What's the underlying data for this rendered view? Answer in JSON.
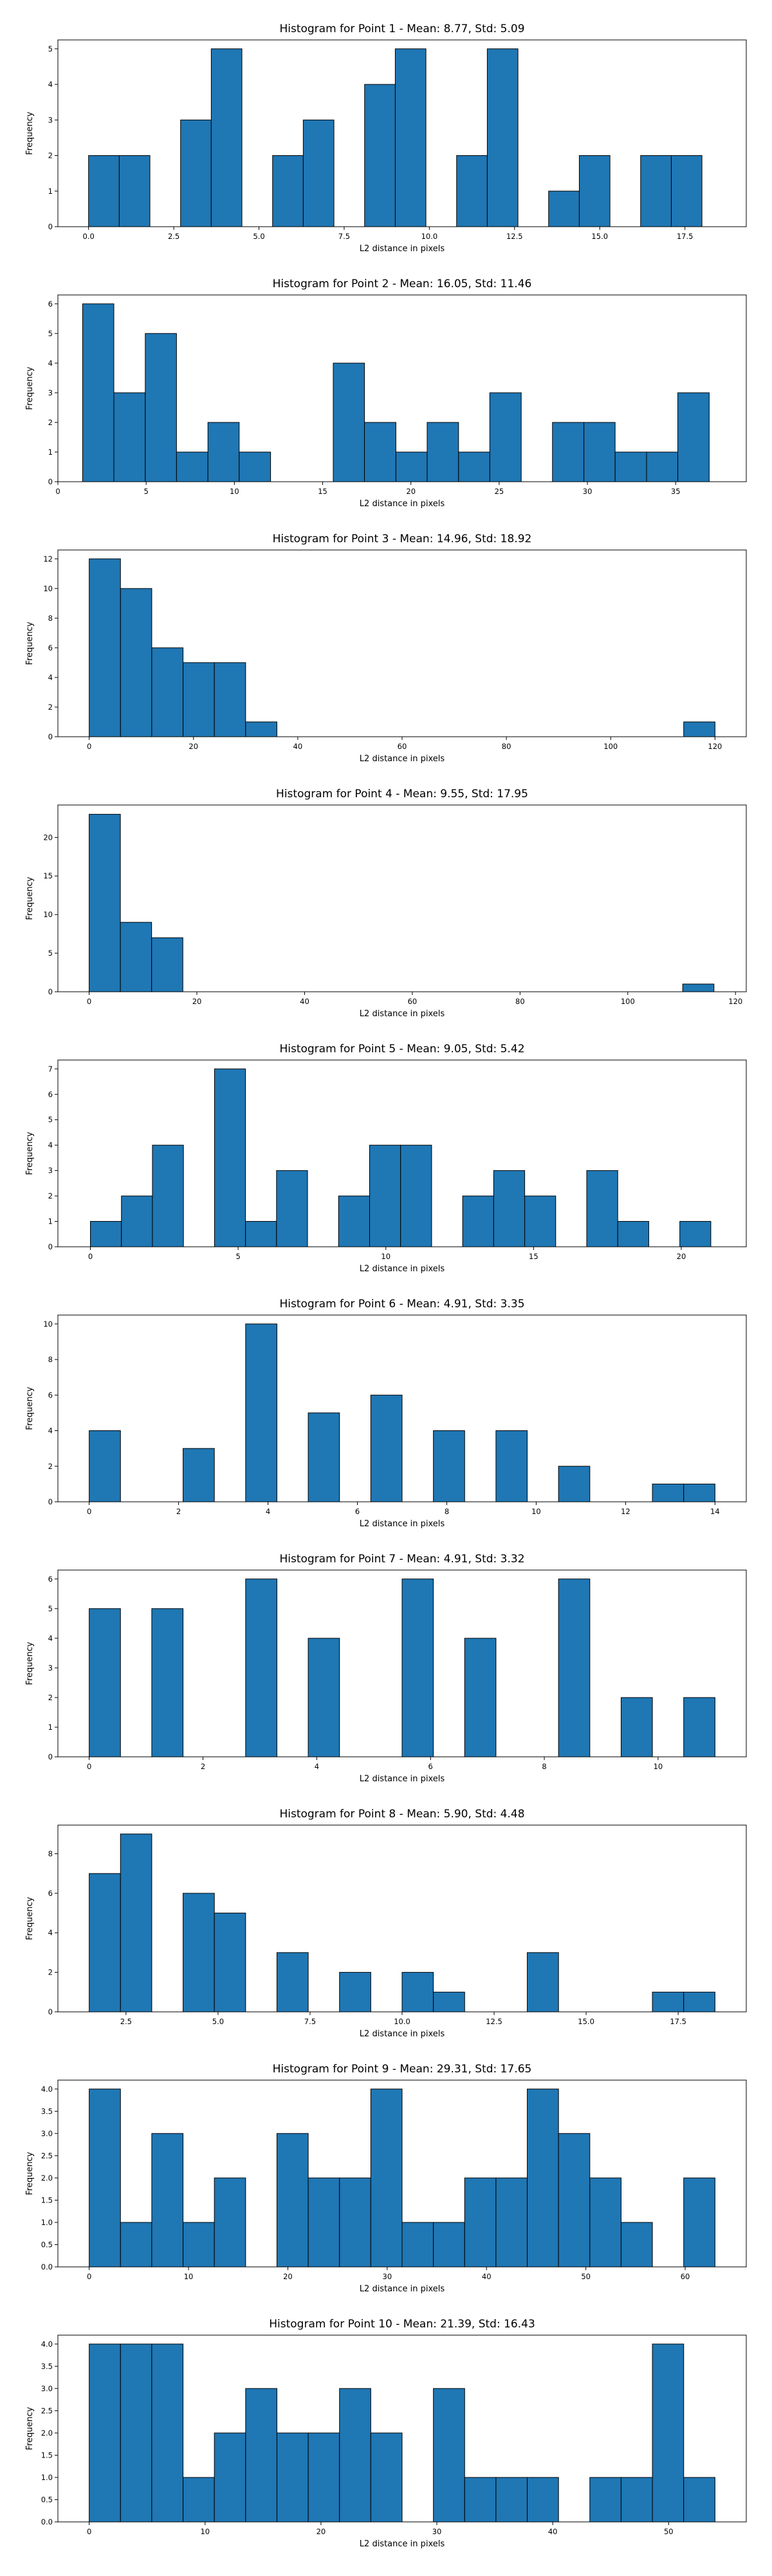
{
  "chart_data": [
    {
      "type": "bar",
      "title": "Histogram for Point 1 - Mean: 8.77, Std: 5.09",
      "xlabel": "L2 distance in pixels",
      "ylabel": "Frequency",
      "xlim": [
        -0.9,
        19.3
      ],
      "ylim": [
        0,
        5.25
      ],
      "xticks": [
        0.0,
        2.5,
        5.0,
        7.5,
        10.0,
        12.5,
        15.0,
        17.5
      ],
      "xtick_labels": [
        "0.0",
        "2.5",
        "5.0",
        "7.5",
        "10.0",
        "12.5",
        "15.0",
        "17.5"
      ],
      "yticks": [
        0,
        1,
        2,
        3,
        4,
        5
      ],
      "ytick_labels": [
        "0",
        "1",
        "2",
        "3",
        "4",
        "5"
      ],
      "bin_edges": [
        0,
        0.9,
        1.8,
        2.7,
        3.6,
        4.5,
        5.4,
        6.3,
        7.2,
        8.1,
        9.0,
        9.9,
        10.8,
        11.7,
        12.6,
        13.5,
        14.4,
        15.3,
        16.2,
        17.1,
        18.0
      ],
      "values": [
        2,
        2,
        0,
        3,
        5,
        0,
        2,
        3,
        0,
        4,
        5,
        0,
        2,
        5,
        0,
        1,
        2,
        0,
        2,
        2
      ]
    },
    {
      "type": "bar",
      "title": "Histogram for Point 2 - Mean: 16.05, Std: 11.46",
      "xlabel": "L2 distance in pixels",
      "ylabel": "Frequency",
      "xlim": [
        0,
        39
      ],
      "ylim": [
        0,
        6.3
      ],
      "xticks": [
        0,
        5,
        10,
        15,
        20,
        25,
        30,
        35
      ],
      "xtick_labels": [
        "0",
        "5",
        "10",
        "15",
        "20",
        "25",
        "30",
        "35"
      ],
      "yticks": [
        0,
        1,
        2,
        3,
        4,
        5,
        6
      ],
      "ytick_labels": [
        "0",
        "1",
        "2",
        "3",
        "4",
        "5",
        "6"
      ],
      "bin_edges": [
        1.4,
        3.17,
        4.95,
        6.72,
        8.5,
        10.27,
        12.05,
        13.82,
        15.6,
        17.37,
        19.15,
        20.92,
        22.7,
        24.47,
        26.25,
        28.02,
        29.8,
        31.57,
        33.35,
        35.12,
        36.9
      ],
      "values": [
        6,
        3,
        5,
        1,
        2,
        1,
        0,
        0,
        4,
        2,
        1,
        2,
        1,
        3,
        0,
        2,
        2,
        1,
        1,
        3
      ]
    },
    {
      "type": "bar",
      "title": "Histogram for Point 3 - Mean: 14.96, Std: 18.92",
      "xlabel": "L2 distance in pixels",
      "ylabel": "Frequency",
      "xlim": [
        -6,
        126
      ],
      "ylim": [
        0,
        12.6
      ],
      "xticks": [
        0,
        20,
        40,
        60,
        80,
        100,
        120
      ],
      "xtick_labels": [
        "0",
        "20",
        "40",
        "60",
        "80",
        "100",
        "120"
      ],
      "yticks": [
        0,
        2,
        4,
        6,
        8,
        10,
        12
      ],
      "ytick_labels": [
        "0",
        "2",
        "4",
        "6",
        "8",
        "10",
        "12"
      ],
      "bin_edges": [
        0,
        6,
        12,
        18,
        24,
        30,
        36,
        42,
        48,
        54,
        60,
        66,
        72,
        78,
        84,
        90,
        96,
        102,
        108,
        114,
        120
      ],
      "values": [
        12,
        10,
        6,
        5,
        5,
        1,
        0,
        0,
        0,
        0,
        0,
        0,
        0,
        0,
        0,
        0,
        0,
        0,
        0,
        1
      ]
    },
    {
      "type": "bar",
      "title": "Histogram for Point 4 - Mean: 9.55, Std: 17.95",
      "xlabel": "L2 distance in pixels",
      "ylabel": "Frequency",
      "xlim": [
        -5.8,
        122
      ],
      "ylim": [
        0,
        24.2
      ],
      "xticks": [
        0,
        20,
        40,
        60,
        80,
        100,
        120
      ],
      "xtick_labels": [
        "0",
        "20",
        "40",
        "60",
        "80",
        "100",
        "120"
      ],
      "yticks": [
        0,
        5,
        10,
        15,
        20
      ],
      "ytick_labels": [
        "0",
        "5",
        "10",
        "15",
        "20"
      ],
      "bin_edges": [
        0,
        5.8,
        11.6,
        17.4,
        23.2,
        29.0,
        34.8,
        40.6,
        46.4,
        52.2,
        58.0,
        63.8,
        69.6,
        75.4,
        81.2,
        87.0,
        92.8,
        98.6,
        104.4,
        110.2,
        116.0
      ],
      "values": [
        23,
        9,
        7,
        0,
        0,
        0,
        0,
        0,
        0,
        0,
        0,
        0,
        0,
        0,
        0,
        0,
        0,
        0,
        0,
        1
      ]
    },
    {
      "type": "bar",
      "title": "Histogram for Point 5 - Mean: 9.05, Std: 5.42",
      "xlabel": "L2 distance in pixels",
      "ylabel": "Frequency",
      "xlim": [
        -1.1,
        22.2
      ],
      "ylim": [
        0,
        7.35
      ],
      "xticks": [
        0,
        5,
        10,
        15,
        20
      ],
      "xtick_labels": [
        "0",
        "5",
        "10",
        "15",
        "20"
      ],
      "yticks": [
        0,
        1,
        2,
        3,
        4,
        5,
        6,
        7
      ],
      "ytick_labels": [
        "0",
        "1",
        "2",
        "3",
        "4",
        "5",
        "6",
        "7"
      ],
      "bin_edges": [
        0,
        1.05,
        2.1,
        3.15,
        4.2,
        5.25,
        6.3,
        7.35,
        8.4,
        9.45,
        10.5,
        11.55,
        12.6,
        13.65,
        14.7,
        15.75,
        16.8,
        17.85,
        18.9,
        19.95,
        21.0
      ],
      "values": [
        1,
        2,
        4,
        0,
        7,
        1,
        3,
        0,
        2,
        4,
        4,
        0,
        2,
        3,
        2,
        0,
        3,
        1,
        0,
        1
      ]
    },
    {
      "type": "bar",
      "title": "Histogram for Point 6 - Mean: 4.91, Std: 3.35",
      "xlabel": "L2 distance in pixels",
      "ylabel": "Frequency",
      "xlim": [
        -0.7,
        14.7
      ],
      "ylim": [
        0,
        10.5
      ],
      "xticks": [
        0,
        2,
        4,
        6,
        8,
        10,
        12,
        14
      ],
      "xtick_labels": [
        "0",
        "2",
        "4",
        "6",
        "8",
        "10",
        "12",
        "14"
      ],
      "yticks": [
        0,
        2,
        4,
        6,
        8,
        10
      ],
      "ytick_labels": [
        "0",
        "2",
        "4",
        "6",
        "8",
        "10"
      ],
      "bin_edges": [
        0,
        0.7,
        1.4,
        2.1,
        2.8,
        3.5,
        4.2,
        4.9,
        5.6,
        6.3,
        7.0,
        7.7,
        8.4,
        9.1,
        9.8,
        10.5,
        11.2,
        11.9,
        12.6,
        13.3,
        14.0
      ],
      "values": [
        4,
        0,
        0,
        3,
        0,
        10,
        0,
        5,
        0,
        6,
        0,
        4,
        0,
        4,
        0,
        2,
        0,
        0,
        1,
        1
      ]
    },
    {
      "type": "bar",
      "title": "Histogram for Point 7 - Mean: 4.91, Std: 3.32",
      "xlabel": "L2 distance in pixels",
      "ylabel": "Frequency",
      "xlim": [
        -0.55,
        11.55
      ],
      "ylim": [
        0,
        6.3
      ],
      "xticks": [
        0,
        2,
        4,
        6,
        8,
        10
      ],
      "xtick_labels": [
        "0",
        "2",
        "4",
        "6",
        "8",
        "10"
      ],
      "yticks": [
        0,
        1,
        2,
        3,
        4,
        5,
        6
      ],
      "ytick_labels": [
        "0",
        "1",
        "2",
        "3",
        "4",
        "5",
        "6"
      ],
      "bin_edges": [
        0,
        0.55,
        1.1,
        1.65,
        2.2,
        2.75,
        3.3,
        3.85,
        4.4,
        4.95,
        5.5,
        6.05,
        6.6,
        7.15,
        7.7,
        8.25,
        8.8,
        9.35,
        9.9,
        10.45,
        11.0
      ],
      "values": [
        5,
        0,
        5,
        0,
        0,
        6,
        0,
        4,
        0,
        0,
        6,
        0,
        4,
        0,
        0,
        6,
        0,
        2,
        0,
        2
      ]
    },
    {
      "type": "bar",
      "title": "Histogram for Point 8 - Mean: 5.90, Std: 4.48",
      "xlabel": "L2 distance in pixels",
      "ylabel": "Frequency",
      "xlim": [
        0.65,
        19.35
      ],
      "ylim": [
        0,
        9.45
      ],
      "xticks": [
        2.5,
        5.0,
        7.5,
        10.0,
        12.5,
        15.0,
        17.5
      ],
      "xtick_labels": [
        "2.5",
        "5.0",
        "7.5",
        "10.0",
        "12.5",
        "15.0",
        "17.5"
      ],
      "yticks": [
        0,
        2,
        4,
        6,
        8
      ],
      "ytick_labels": [
        "0",
        "2",
        "4",
        "6",
        "8"
      ],
      "bin_edges": [
        1.5,
        2.35,
        3.2,
        4.05,
        4.9,
        5.75,
        6.6,
        7.45,
        8.3,
        9.15,
        10.0,
        10.85,
        11.7,
        12.55,
        13.4,
        14.25,
        15.1,
        15.95,
        16.8,
        17.65,
        18.5
      ],
      "values": [
        7,
        9,
        0,
        6,
        5,
        0,
        3,
        0,
        2,
        0,
        2,
        1,
        0,
        0,
        3,
        0,
        0,
        0,
        1,
        1
      ]
    },
    {
      "type": "bar",
      "title": "Histogram for Point 9 - Mean: 29.31, Std: 17.65",
      "xlabel": "L2 distance in pixels",
      "ylabel": "Frequency",
      "xlim": [
        -3.15,
        66.15
      ],
      "ylim": [
        0,
        4.2
      ],
      "xticks": [
        0,
        10,
        20,
        30,
        40,
        50,
        60
      ],
      "xtick_labels": [
        "0",
        "10",
        "20",
        "30",
        "40",
        "50",
        "60"
      ],
      "yticks": [
        0,
        0.5,
        1.0,
        1.5,
        2.0,
        2.5,
        3.0,
        3.5,
        4.0
      ],
      "ytick_labels": [
        "0.0",
        "0.5",
        "1.0",
        "1.5",
        "2.0",
        "2.5",
        "3.0",
        "3.5",
        "4.0"
      ],
      "bin_edges": [
        0,
        3.15,
        6.3,
        9.45,
        12.6,
        15.75,
        18.9,
        22.05,
        25.2,
        28.35,
        31.5,
        34.65,
        37.8,
        40.95,
        44.1,
        47.25,
        50.4,
        53.55,
        56.7,
        59.85,
        63.0
      ],
      "values": [
        4,
        1,
        3,
        1,
        2,
        0,
        3,
        2,
        2,
        4,
        1,
        1,
        2,
        2,
        4,
        3,
        2,
        1,
        0,
        2
      ]
    },
    {
      "type": "bar",
      "title": "Histogram for Point 10 - Mean: 21.39, Std: 16.43",
      "xlabel": "L2 distance in pixels",
      "ylabel": "Frequency",
      "xlim": [
        -2.7,
        56.7
      ],
      "ylim": [
        0,
        4.2
      ],
      "xticks": [
        0,
        10,
        20,
        30,
        40,
        50
      ],
      "xtick_labels": [
        "0",
        "10",
        "20",
        "30",
        "40",
        "50"
      ],
      "yticks": [
        0,
        0.5,
        1.0,
        1.5,
        2.0,
        2.5,
        3.0,
        3.5,
        4.0
      ],
      "ytick_labels": [
        "0.0",
        "0.5",
        "1.0",
        "1.5",
        "2.0",
        "2.5",
        "3.0",
        "3.5",
        "4.0"
      ],
      "bin_edges": [
        0,
        2.7,
        5.4,
        8.1,
        10.8,
        13.5,
        16.2,
        18.9,
        21.6,
        24.3,
        27.0,
        29.7,
        32.4,
        35.1,
        37.8,
        40.5,
        43.2,
        45.9,
        48.6,
        51.3,
        54.0
      ],
      "values": [
        4,
        4,
        4,
        1,
        2,
        3,
        2,
        2,
        3,
        2,
        0,
        3,
        1,
        1,
        1,
        0,
        1,
        1,
        4,
        1
      ]
    }
  ]
}
